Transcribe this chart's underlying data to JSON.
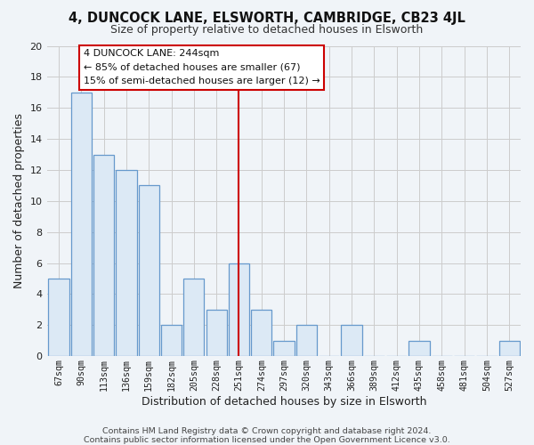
{
  "title": "4, DUNCOCK LANE, ELSWORTH, CAMBRIDGE, CB23 4JL",
  "subtitle": "Size of property relative to detached houses in Elsworth",
  "xlabel": "Distribution of detached houses by size in Elsworth",
  "ylabel": "Number of detached properties",
  "bar_labels": [
    "67sqm",
    "90sqm",
    "113sqm",
    "136sqm",
    "159sqm",
    "182sqm",
    "205sqm",
    "228sqm",
    "251sqm",
    "274sqm",
    "297sqm",
    "320sqm",
    "343sqm",
    "366sqm",
    "389sqm",
    "412sqm",
    "435sqm",
    "458sqm",
    "481sqm",
    "504sqm",
    "527sqm"
  ],
  "bar_values": [
    5,
    17,
    13,
    12,
    11,
    2,
    5,
    3,
    6,
    3,
    1,
    2,
    0,
    2,
    0,
    0,
    1,
    0,
    0,
    0,
    1
  ],
  "bar_color": "#dce9f5",
  "bar_edge_color": "#6699cc",
  "highlight_index": 8,
  "highlight_color": "#cc0000",
  "ylim": [
    0,
    20
  ],
  "yticks": [
    0,
    2,
    4,
    6,
    8,
    10,
    12,
    14,
    16,
    18,
    20
  ],
  "annotation_title": "4 DUNCOCK LANE: 244sqm",
  "annotation_line1": "← 85% of detached houses are smaller (67)",
  "annotation_line2": "15% of semi-detached houses are larger (12) →",
  "annotation_box_facecolor": "#ffffff",
  "annotation_box_edgecolor": "#cc0000",
  "grid_color": "#cccccc",
  "background_color": "#f0f4f8",
  "plot_bg_color": "#f0f4f8",
  "footer_line1": "Contains HM Land Registry data © Crown copyright and database right 2024.",
  "footer_line2": "Contains public sector information licensed under the Open Government Licence v3.0."
}
